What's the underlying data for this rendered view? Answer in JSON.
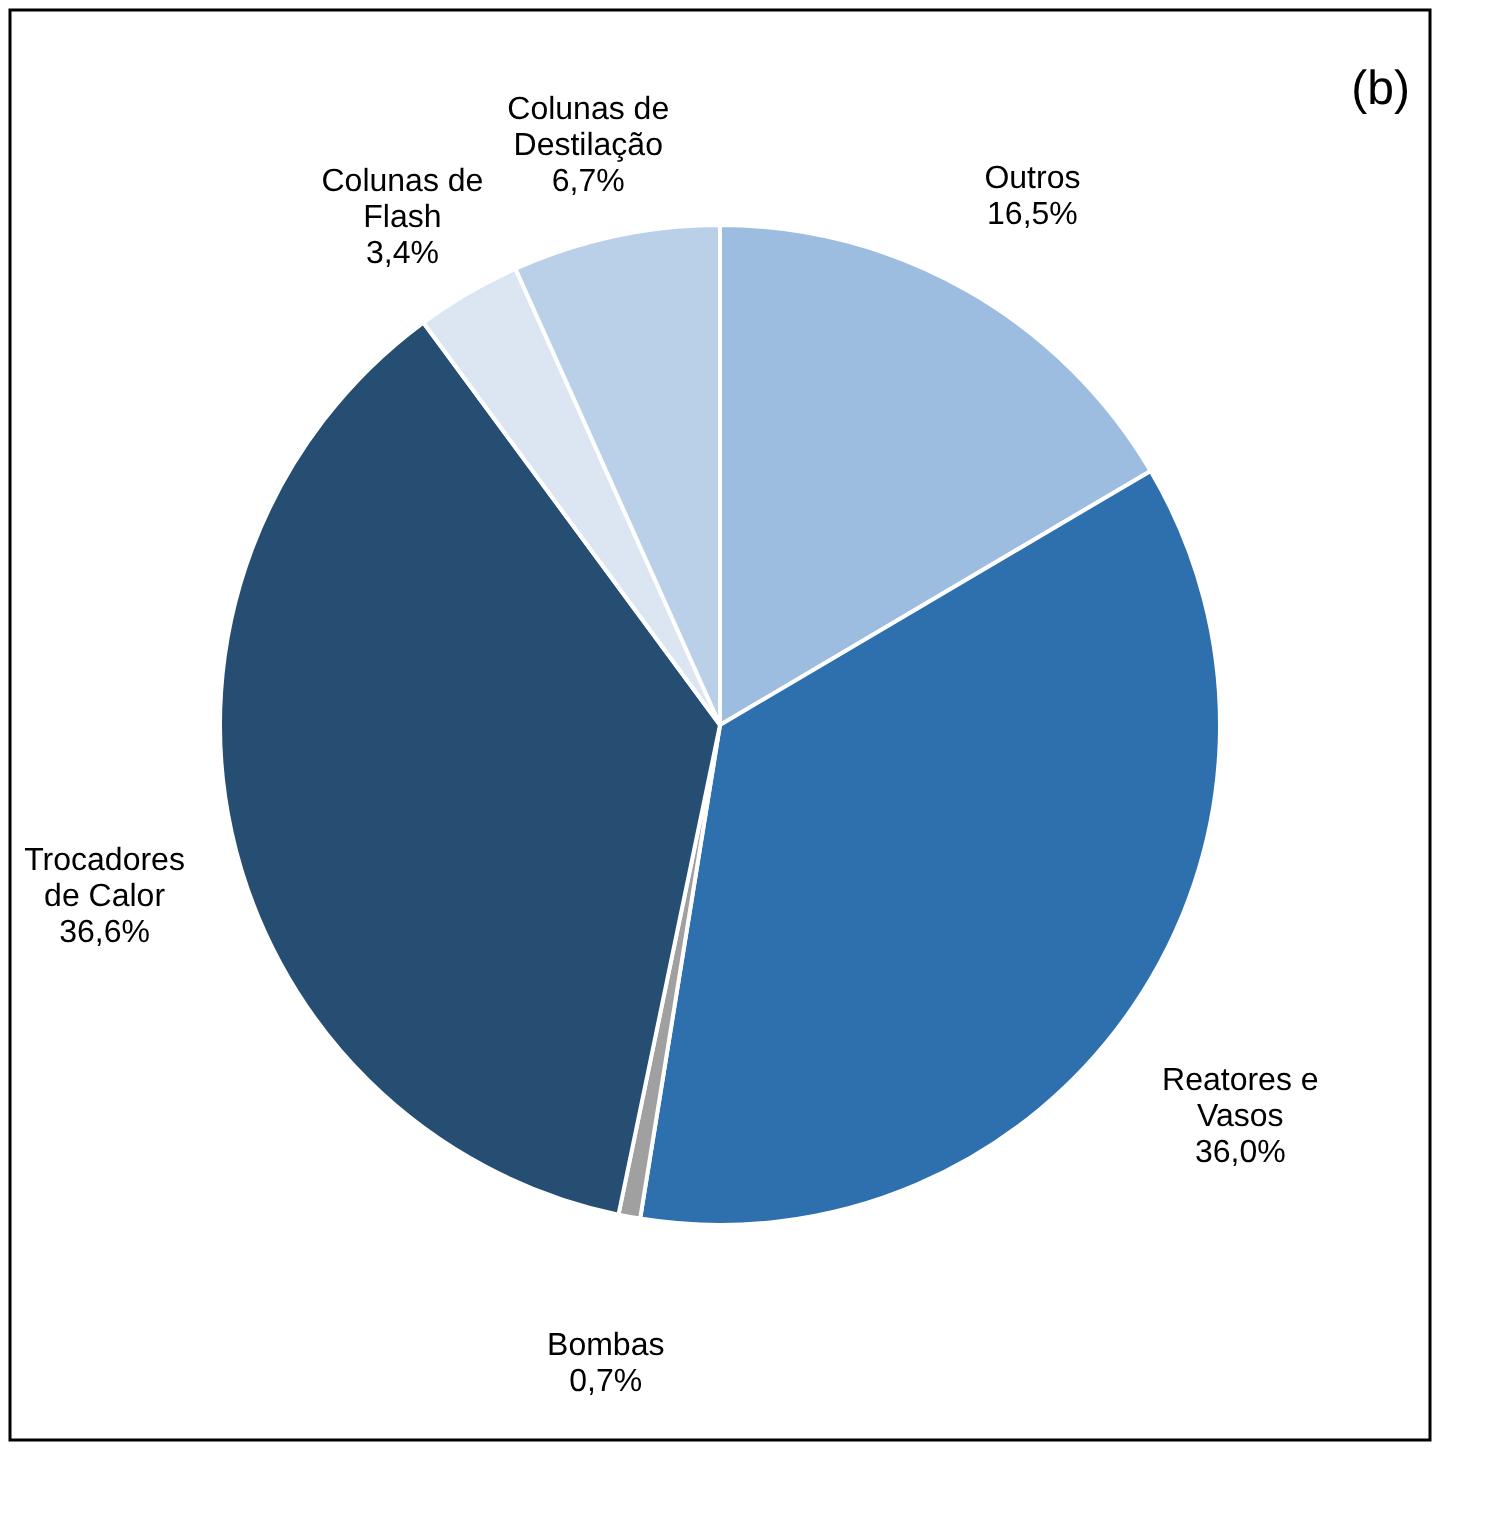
{
  "chart_data": {
    "type": "pie",
    "annotations": [
      "(b)"
    ],
    "categories": [
      "Outros",
      "Reatores e Vasos",
      "Bombas",
      "Trocadores de Calor",
      "Colunas de Flash",
      "Colunas de Destilação"
    ],
    "values": [
      16.5,
      36.0,
      0.7,
      36.6,
      3.4,
      6.7
    ],
    "value_labels": [
      "16,5%",
      "36,0%",
      "0,7%",
      "36,6%",
      "3,4%",
      "6,7%"
    ],
    "colors": [
      "#9dbde0",
      "#2e6fad",
      "#a0a0a0",
      "#264e73",
      "#dce6f2",
      "#b9d0e8"
    ],
    "legend": false
  }
}
